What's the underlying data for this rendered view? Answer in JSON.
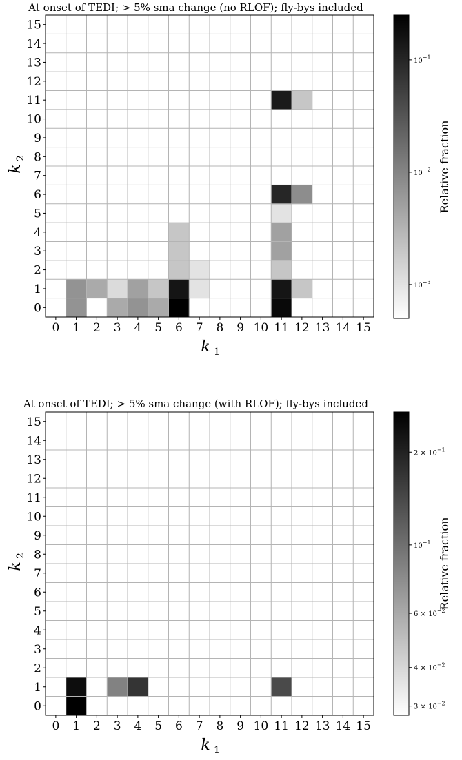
{
  "chart_data": [
    {
      "type": "heatmap",
      "title": "At onset of TEDI; > 5% sma change (no RLOF); fly-bys included",
      "xlabel": "k",
      "xlabel_sub": "1",
      "ylabel": "k",
      "ylabel_sub": "2",
      "x_ticks": [
        "0",
        "1",
        "2",
        "3",
        "4",
        "5",
        "6",
        "7",
        "8",
        "9",
        "10",
        "11",
        "12",
        "13",
        "14",
        "15"
      ],
      "y_ticks": [
        "0",
        "1",
        "2",
        "3",
        "4",
        "5",
        "6",
        "7",
        "8",
        "9",
        "10",
        "11",
        "12",
        "13",
        "14",
        "15"
      ],
      "colorbar": {
        "label": "Relative fraction",
        "scale": "log",
        "range": [
          0.0005,
          0.25
        ],
        "colormap": "Greys",
        "ticks": [
          {
            "value": 0.1,
            "mantissa": "",
            "base": "10",
            "exp": "−1"
          },
          {
            "value": 0.01,
            "mantissa": "",
            "base": "10",
            "exp": "−2"
          },
          {
            "value": 0.001,
            "mantissa": "",
            "base": "10",
            "exp": "−3"
          }
        ]
      },
      "cells": [
        {
          "k1": 1,
          "k2": 0,
          "value": 0.007
        },
        {
          "k1": 1,
          "k2": 1,
          "value": 0.007
        },
        {
          "k1": 2,
          "k2": 1,
          "value": 0.004
        },
        {
          "k1": 2,
          "k2": 0,
          "value": 0.0005
        },
        {
          "k1": 3,
          "k2": 0,
          "value": 0.004
        },
        {
          "k1": 3,
          "k2": 1,
          "value": 0.0012
        },
        {
          "k1": 4,
          "k2": 0,
          "value": 0.007
        },
        {
          "k1": 4,
          "k2": 1,
          "value": 0.005
        },
        {
          "k1": 5,
          "k2": 0,
          "value": 0.004
        },
        {
          "k1": 5,
          "k2": 1,
          "value": 0.002
        },
        {
          "k1": 6,
          "k2": 0,
          "value": 0.25
        },
        {
          "k1": 6,
          "k2": 1,
          "value": 0.15
        },
        {
          "k1": 6,
          "k2": 2,
          "value": 0.002
        },
        {
          "k1": 6,
          "k2": 3,
          "value": 0.002
        },
        {
          "k1": 6,
          "k2": 4,
          "value": 0.002
        },
        {
          "k1": 7,
          "k2": 1,
          "value": 0.001
        },
        {
          "k1": 7,
          "k2": 2,
          "value": 0.001
        },
        {
          "k1": 11,
          "k2": 0,
          "value": 0.2
        },
        {
          "k1": 11,
          "k2": 1,
          "value": 0.15
        },
        {
          "k1": 11,
          "k2": 2,
          "value": 0.002
        },
        {
          "k1": 11,
          "k2": 3,
          "value": 0.005
        },
        {
          "k1": 11,
          "k2": 4,
          "value": 0.005
        },
        {
          "k1": 11,
          "k2": 5,
          "value": 0.001
        },
        {
          "k1": 11,
          "k2": 6,
          "value": 0.1
        },
        {
          "k1": 11,
          "k2": 11,
          "value": 0.13
        },
        {
          "k1": 12,
          "k2": 1,
          "value": 0.002
        },
        {
          "k1": 12,
          "k2": 6,
          "value": 0.008
        },
        {
          "k1": 12,
          "k2": 11,
          "value": 0.002
        }
      ]
    },
    {
      "type": "heatmap",
      "title": "At onset of TEDI; > 5% sma change (with RLOF); fly-bys included",
      "xlabel": "k",
      "xlabel_sub": "1",
      "ylabel": "k",
      "ylabel_sub": "2",
      "x_ticks": [
        "0",
        "1",
        "2",
        "3",
        "4",
        "5",
        "6",
        "7",
        "8",
        "9",
        "10",
        "11",
        "12",
        "13",
        "14",
        "15"
      ],
      "y_ticks": [
        "0",
        "1",
        "2",
        "3",
        "4",
        "5",
        "6",
        "7",
        "8",
        "9",
        "10",
        "11",
        "12",
        "13",
        "14",
        "15"
      ],
      "colorbar": {
        "label": "Relative fraction",
        "scale": "log",
        "range": [
          0.028,
          0.27
        ],
        "colormap": "Greys",
        "ticks": [
          {
            "value": 0.2,
            "mantissa": "2",
            "base": "10",
            "exp": "−1"
          },
          {
            "value": 0.1,
            "mantissa": "",
            "base": "10",
            "exp": "−1"
          },
          {
            "value": 0.06,
            "mantissa": "6",
            "base": "10",
            "exp": "−2"
          },
          {
            "value": 0.04,
            "mantissa": "4",
            "base": "10",
            "exp": "−2"
          },
          {
            "value": 0.03,
            "mantissa": "3",
            "base": "10",
            "exp": "−2"
          }
        ]
      },
      "cells": [
        {
          "k1": 1,
          "k2": 0,
          "value": 0.27
        },
        {
          "k1": 1,
          "k2": 1,
          "value": 0.24
        },
        {
          "k1": 3,
          "k2": 1,
          "value": 0.085
        },
        {
          "k1": 4,
          "k2": 1,
          "value": 0.17
        },
        {
          "k1": 11,
          "k2": 1,
          "value": 0.14
        }
      ]
    }
  ]
}
